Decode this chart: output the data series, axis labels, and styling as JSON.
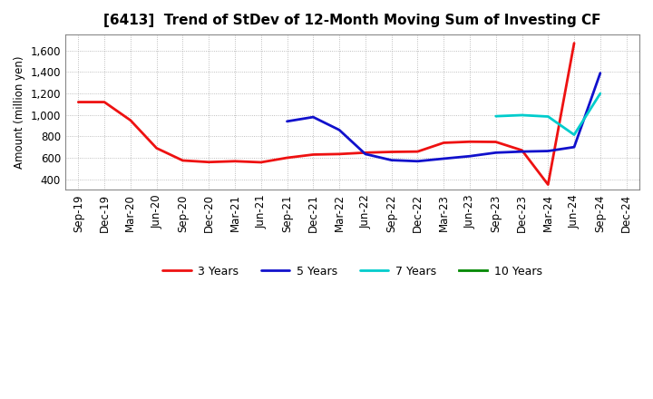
{
  "title": "[6413]  Trend of StDev of 12-Month Moving Sum of Investing CF",
  "ylabel": "Amount (million yen)",
  "background_color": "#ffffff",
  "plot_bg_color": "#ffffff",
  "grid_color": "#999999",
  "ylim": [
    300,
    1750
  ],
  "yticks": [
    400,
    600,
    800,
    1000,
    1200,
    1400,
    1600
  ],
  "x_labels": [
    "Sep-19",
    "Dec-19",
    "Mar-20",
    "Jun-20",
    "Sep-20",
    "Dec-20",
    "Mar-21",
    "Jun-21",
    "Sep-21",
    "Dec-21",
    "Mar-22",
    "Jun-22",
    "Sep-22",
    "Dec-22",
    "Mar-23",
    "Jun-23",
    "Sep-23",
    "Dec-23",
    "Mar-24",
    "Jun-24",
    "Sep-24",
    "Dec-24"
  ],
  "series": {
    "3 Years": {
      "color": "#ee1111",
      "data_x": [
        0,
        1,
        2,
        3,
        4,
        5,
        6,
        7,
        8,
        9,
        10,
        11,
        12,
        13,
        14,
        15,
        16,
        17,
        18,
        19,
        20
      ],
      "data_y": [
        1120,
        1120,
        950,
        690,
        575,
        560,
        568,
        558,
        600,
        630,
        635,
        648,
        655,
        658,
        740,
        750,
        748,
        670,
        350,
        1670,
        null
      ]
    },
    "5 Years": {
      "color": "#1111cc",
      "data_x": [
        8,
        9,
        10,
        11,
        12,
        13,
        14,
        15,
        16,
        17,
        18,
        19,
        20
      ],
      "data_y": [
        940,
        980,
        860,
        635,
        578,
        568,
        592,
        615,
        648,
        658,
        663,
        700,
        1390
      ]
    },
    "7 Years": {
      "color": "#00cccc",
      "data_x": [
        16,
        17,
        18,
        19,
        20
      ],
      "data_y": [
        988,
        998,
        985,
        815,
        1200
      ]
    },
    "10 Years": {
      "color": "#008800",
      "data_x": [],
      "data_y": []
    }
  },
  "legend_entries": [
    "3 Years",
    "5 Years",
    "7 Years",
    "10 Years"
  ],
  "legend_colors": [
    "#ee1111",
    "#1111cc",
    "#00cccc",
    "#008800"
  ],
  "title_fontsize": 11,
  "axis_fontsize": 8.5,
  "ylabel_fontsize": 8.5,
  "linewidth": 2.0
}
